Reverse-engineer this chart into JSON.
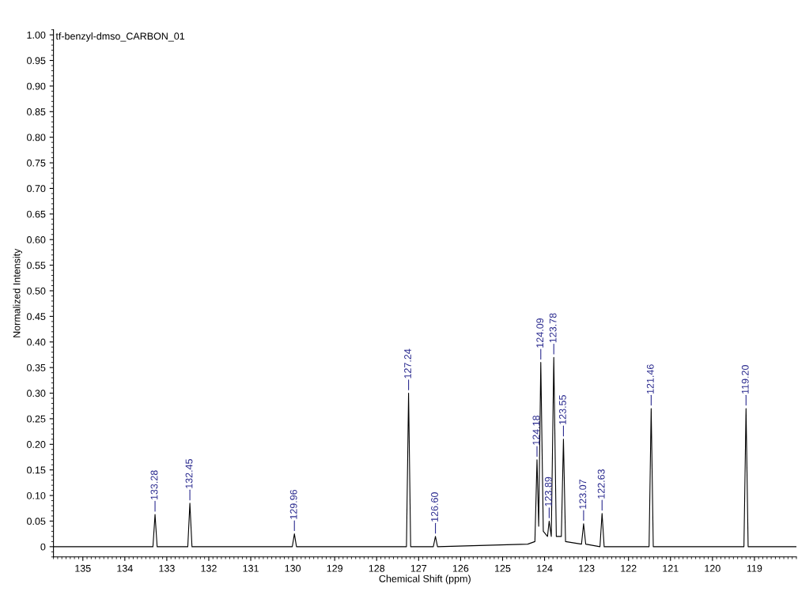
{
  "chart_data": {
    "type": "line",
    "title": "tf-benzyl-dmso_CARBON_01",
    "xlabel": "Chemical Shift (ppm)",
    "ylabel": "Normalized Intensity",
    "xlim": [
      135.7,
      118.0
    ],
    "xticks": [
      135,
      134,
      133,
      132,
      131,
      130,
      129,
      128,
      127,
      126,
      125,
      124,
      123,
      122,
      121,
      120,
      119
    ],
    "ylim": [
      -0.02,
      1.01
    ],
    "yticks": [
      {
        "value": 0,
        "label": "0"
      },
      {
        "value": 0.05,
        "label": "0.05"
      },
      {
        "value": 0.1,
        "label": "0.10"
      },
      {
        "value": 0.15,
        "label": "0.15"
      },
      {
        "value": 0.2,
        "label": "0.20"
      },
      {
        "value": 0.25,
        "label": "0.25"
      },
      {
        "value": 0.3,
        "label": "0.30"
      },
      {
        "value": 0.35,
        "label": "0.35"
      },
      {
        "value": 0.4,
        "label": "0.40"
      },
      {
        "value": 0.45,
        "label": "0.45"
      },
      {
        "value": 0.5,
        "label": "0.50"
      },
      {
        "value": 0.55,
        "label": "0.55"
      },
      {
        "value": 0.6,
        "label": "0.60"
      },
      {
        "value": 0.65,
        "label": "0.65"
      },
      {
        "value": 0.7,
        "label": "0.70"
      },
      {
        "value": 0.75,
        "label": "0.75"
      },
      {
        "value": 0.8,
        "label": "0.80"
      },
      {
        "value": 0.85,
        "label": "0.85"
      },
      {
        "value": 0.9,
        "label": "0.90"
      },
      {
        "value": 0.95,
        "label": "0.95"
      },
      {
        "value": 1.0,
        "label": "1.00"
      }
    ],
    "grid": false,
    "legend": false,
    "marker": "none",
    "line_style": "solid",
    "series": [
      {
        "color": "#000000",
        "x": [
          135.7,
          134.0,
          133.33,
          133.28,
          133.23,
          132.5,
          132.45,
          132.4,
          130.01,
          129.96,
          129.91,
          127.29,
          127.24,
          127.19,
          126.65,
          126.6,
          126.55,
          124.4,
          124.23,
          124.18,
          124.14,
          124.09,
          124.03,
          123.93,
          123.89,
          123.84,
          123.78,
          123.72,
          123.6,
          123.55,
          123.5,
          123.12,
          123.07,
          123.02,
          122.68,
          122.63,
          122.58,
          121.51,
          121.46,
          121.41,
          119.25,
          119.2,
          119.15,
          118.0
        ],
        "values": [
          0,
          0,
          0,
          0.063,
          0,
          0,
          0.085,
          0,
          0,
          0.025,
          0,
          0,
          0.3,
          0,
          0,
          0.02,
          0,
          0.005,
          0.01,
          0.17,
          0.04,
          0.36,
          0.03,
          0.02,
          0.05,
          0.02,
          0.37,
          0.02,
          0.02,
          0.21,
          0.01,
          0.005,
          0.045,
          0.005,
          0,
          0.065,
          0,
          0,
          0.27,
          0,
          0,
          0.27,
          0,
          0
        ]
      }
    ],
    "annotations": [
      {
        "text": "133.28",
        "x": 133.28,
        "y": 0.063
      },
      {
        "text": "132.45",
        "x": 132.45,
        "y": 0.085
      },
      {
        "text": "129.96",
        "x": 129.96,
        "y": 0.025
      },
      {
        "text": "127.24",
        "x": 127.24,
        "y": 0.3
      },
      {
        "text": "126.60",
        "x": 126.6,
        "y": 0.02
      },
      {
        "text": "124.18",
        "x": 124.18,
        "y": 0.17
      },
      {
        "text": "124.09",
        "x": 124.09,
        "y": 0.36
      },
      {
        "text": "123.89",
        "x": 123.89,
        "y": 0.05
      },
      {
        "text": "123.78",
        "x": 123.78,
        "y": 0.37
      },
      {
        "text": "123.55",
        "x": 123.55,
        "y": 0.21
      },
      {
        "text": "123.07",
        "x": 123.07,
        "y": 0.045
      },
      {
        "text": "122.63",
        "x": 122.63,
        "y": 0.065
      },
      {
        "text": "121.46",
        "x": 121.46,
        "y": 0.27
      },
      {
        "text": "119.20",
        "x": 119.2,
        "y": 0.27
      }
    ]
  }
}
